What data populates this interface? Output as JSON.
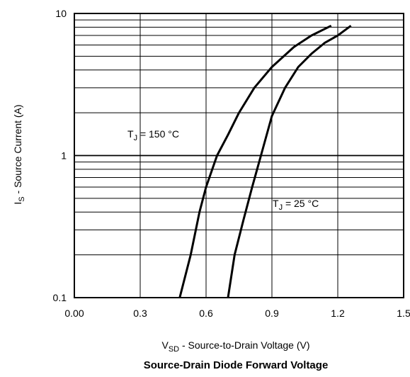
{
  "chart_data": {
    "type": "line",
    "title": "Source-Drain Diode Forward Voltage",
    "xlabel": {
      "main": "V",
      "sub": "SD",
      "rest": "  -  Source-to-Drain Voltage (V)"
    },
    "ylabel": {
      "main": "I",
      "sub": "S",
      "rest": "  -  Source Current (A)"
    },
    "x_range": [
      0.0,
      1.5
    ],
    "y_range": [
      0.1,
      10
    ],
    "y_scale": "log",
    "grid": true,
    "x_ticks": [
      "0.00",
      "0.3",
      "0.6",
      "0.9",
      "1.2",
      "1.5"
    ],
    "y_ticks": [
      "0.1",
      "1",
      "10"
    ],
    "series": [
      {
        "name": {
          "main": "T",
          "sub": "J",
          "rest": " = 150 °C"
        },
        "x": [
          0.48,
          0.53,
          0.57,
          0.6,
          0.65,
          0.7,
          0.75,
          0.82,
          0.9,
          1.0,
          1.08,
          1.17
        ],
        "y": [
          0.1,
          0.2,
          0.4,
          0.6,
          1.0,
          1.4,
          2.0,
          3.0,
          4.2,
          5.8,
          7.0,
          8.2
        ]
      },
      {
        "name": {
          "main": "T",
          "sub": "J",
          "rest": " = 25 °C"
        },
        "x": [
          0.7,
          0.73,
          0.77,
          0.81,
          0.85,
          0.9,
          0.96,
          1.02,
          1.08,
          1.14,
          1.2,
          1.26
        ],
        "y": [
          0.1,
          0.2,
          0.35,
          0.6,
          1.0,
          1.9,
          3.0,
          4.2,
          5.2,
          6.2,
          7.0,
          8.2
        ]
      }
    ]
  }
}
